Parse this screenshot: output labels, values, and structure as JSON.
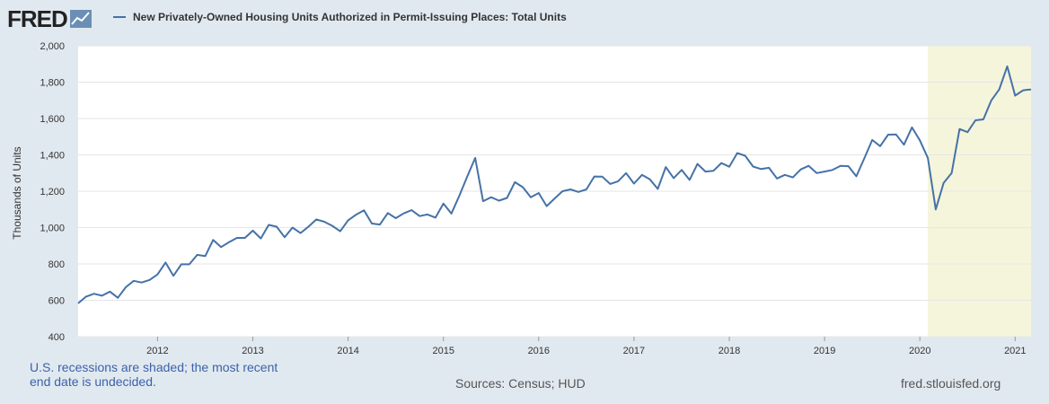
{
  "header": {
    "logo_text": "FRED",
    "legend_label": "New Privately-Owned Housing Units Authorized in Permit-Issuing Places: Total Units",
    "series_color": "#4572a7"
  },
  "footer": {
    "recession_note_line1": "U.S. recessions are shaded; the most recent",
    "recession_note_line2": "end date is undecided.",
    "sources": "Sources: Census; HUD",
    "url": "fred.stlouisfed.org"
  },
  "chart_data": {
    "type": "line",
    "ylabel": "Thousands of Units",
    "ylim": [
      400,
      2000
    ],
    "yticks": [
      400,
      600,
      800,
      1000,
      1200,
      1400,
      1600,
      1800,
      2000
    ],
    "ytick_labels": [
      "400",
      "600",
      "800",
      "1,000",
      "1,200",
      "1,400",
      "1,600",
      "1,800",
      "2,000"
    ],
    "xticks": [
      "2012",
      "2013",
      "2014",
      "2015",
      "2016",
      "2017",
      "2018",
      "2019",
      "2020",
      "2021"
    ],
    "grid": true,
    "recession_shading": {
      "start": "2020-02",
      "end": "2021-03",
      "color": "#f5f5dc"
    },
    "series": [
      {
        "color": "#4572a7",
        "start": "2011-03",
        "frequency": "monthly",
        "values": [
          583,
          620,
          636,
          625,
          648,
          614,
          672,
          707,
          698,
          712,
          742,
          808,
          735,
          798,
          798,
          850,
          843,
          932,
          893,
          920,
          943,
          943,
          983,
          940,
          1015,
          1005,
          947,
          1000,
          970,
          1005,
          1045,
          1032,
          1010,
          980,
          1040,
          1071,
          1095,
          1022,
          1017,
          1080,
          1052,
          1078,
          1096,
          1063,
          1072,
          1055,
          1132,
          1077,
          1175,
          1280,
          1383,
          1145,
          1167,
          1148,
          1163,
          1250,
          1222,
          1167,
          1190,
          1118,
          1160,
          1200,
          1210,
          1196,
          1210,
          1281,
          1280,
          1240,
          1255,
          1300,
          1242,
          1290,
          1265,
          1213,
          1333,
          1272,
          1317,
          1262,
          1350,
          1308,
          1312,
          1355,
          1335,
          1410,
          1395,
          1336,
          1322,
          1329,
          1270,
          1290,
          1276,
          1320,
          1340,
          1300,
          1308,
          1317,
          1340,
          1338,
          1282,
          1380,
          1482,
          1448,
          1511,
          1512,
          1456,
          1551,
          1480,
          1383,
          1100,
          1246,
          1300,
          1542,
          1525,
          1590,
          1595,
          1700,
          1760,
          1887,
          1726,
          1755,
          1760
        ]
      }
    ]
  }
}
